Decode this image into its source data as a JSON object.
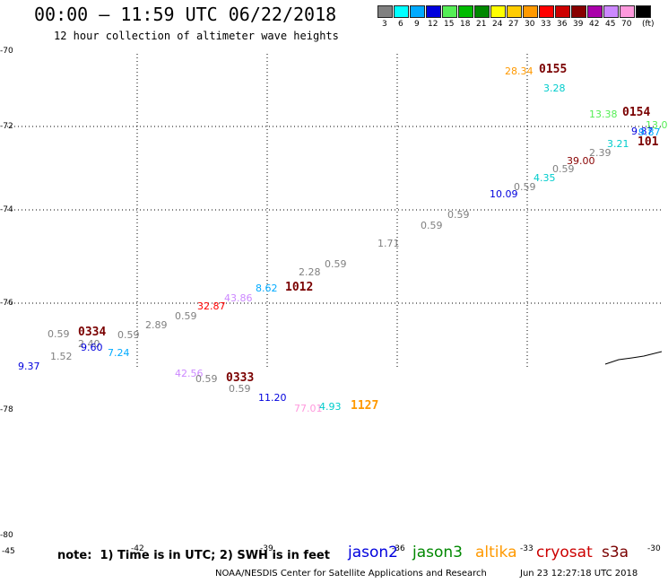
{
  "header": {
    "title": "00:00 – 11:59 UTC 06/22/2018",
    "subtitle": "12 hour collection of altimeter wave heights"
  },
  "colorbar": [
    {
      "color": "#808080",
      "label": "3"
    },
    {
      "color": "#00ffff",
      "label": "6"
    },
    {
      "color": "#00aaff",
      "label": "9"
    },
    {
      "color": "#0000dd",
      "label": "12"
    },
    {
      "color": "#55ee55",
      "label": "15"
    },
    {
      "color": "#00bb00",
      "label": "18"
    },
    {
      "color": "#008800",
      "label": "21"
    },
    {
      "color": "#ffff00",
      "label": "24"
    },
    {
      "color": "#ffcc00",
      "label": "27"
    },
    {
      "color": "#ff9900",
      "label": "30"
    },
    {
      "color": "#ff0000",
      "label": "33"
    },
    {
      "color": "#cc0000",
      "label": "36"
    },
    {
      "color": "#880000",
      "label": "39"
    },
    {
      "color": "#aa00aa",
      "label": "42"
    },
    {
      "color": "#cc88ff",
      "label": "45"
    },
    {
      "color": "#ff99dd",
      "label": "70"
    },
    {
      "color": "#000000",
      "label": "(ft)"
    }
  ],
  "lat_labels": [
    "-70",
    "-72",
    "-74",
    "-76",
    "-78",
    "-80"
  ],
  "lon_labels": [
    "-45",
    "-42",
    "-39",
    "-36",
    "-33",
    "-30"
  ],
  "points": [
    {
      "text": "28.34",
      "color": "#ff9900"
    },
    {
      "text": "3.28",
      "color": "#00cccc"
    },
    {
      "text": "13.38",
      "color": "#55ee55"
    },
    {
      "text": "13.0",
      "color": "#55ee55"
    },
    {
      "text": "9.87",
      "color": "#0000dd"
    },
    {
      "text": "9.87",
      "color": "#00aaff"
    },
    {
      "text": "3.21",
      "color": "#00cccc"
    },
    {
      "text": "2.39",
      "color": "#808080"
    },
    {
      "text": "39.00",
      "color": "#880000"
    },
    {
      "text": "0.59",
      "color": "#808080"
    },
    {
      "text": "4.35",
      "color": "#00cccc"
    },
    {
      "text": "0.59",
      "color": "#808080"
    },
    {
      "text": "10.09",
      "color": "#0000dd"
    },
    {
      "text": "0.59",
      "color": "#808080"
    },
    {
      "text": "0.59",
      "color": "#808080"
    },
    {
      "text": "1.71",
      "color": "#808080"
    },
    {
      "text": "0.59",
      "color": "#808080"
    },
    {
      "text": "2.28",
      "color": "#808080"
    },
    {
      "text": "8.62",
      "color": "#00aaff"
    },
    {
      "text": "43.86",
      "color": "#cc88ff"
    },
    {
      "text": "32.87",
      "color": "#ff0000"
    },
    {
      "text": "0.59",
      "color": "#808080"
    },
    {
      "text": "2.89",
      "color": "#808080"
    },
    {
      "text": "0.59",
      "color": "#808080"
    },
    {
      "text": "0.59",
      "color": "#808080"
    },
    {
      "text": "2.40",
      "color": "#808080"
    },
    {
      "text": "9.60",
      "color": "#0000dd"
    },
    {
      "text": "7.24",
      "color": "#00aaff"
    },
    {
      "text": "1.52",
      "color": "#808080"
    },
    {
      "text": "9.37",
      "color": "#0000dd"
    },
    {
      "text": "42.56",
      "color": "#cc88ff"
    },
    {
      "text": "0.59",
      "color": "#808080"
    },
    {
      "text": "0.59",
      "color": "#808080"
    },
    {
      "text": "11.20",
      "color": "#0000dd"
    },
    {
      "text": "77.01",
      "color": "#ff99dd"
    },
    {
      "text": "4.93",
      "color": "#00cccc"
    }
  ],
  "pass_labels": [
    {
      "text": "0155",
      "color": "#7a0000"
    },
    {
      "text": "0154",
      "color": "#7a0000"
    },
    {
      "text": "101",
      "color": "#7a0000"
    },
    {
      "text": "1012",
      "color": "#7a0000"
    },
    {
      "text": "0334",
      "color": "#7a0000"
    },
    {
      "text": "0333",
      "color": "#7a0000"
    },
    {
      "text": "1127",
      "color": "#ff9900"
    }
  ],
  "note": "note:  1) Time is in UTC; 2) SWH is in feet",
  "legend": [
    {
      "text": "jason2",
      "color": "#0000dd"
    },
    {
      "text": "jason3",
      "color": "#008800"
    },
    {
      "text": "altika",
      "color": "#ff9900"
    },
    {
      "text": "cryosat",
      "color": "#cc0000"
    },
    {
      "text": "s3a",
      "color": "#7a0000"
    }
  ],
  "footer": {
    "credit": "NOAA/NESDIS Center for Satellite Applications and Research",
    "timestamp": "Jun 23 12:27:18 UTC 2018"
  }
}
